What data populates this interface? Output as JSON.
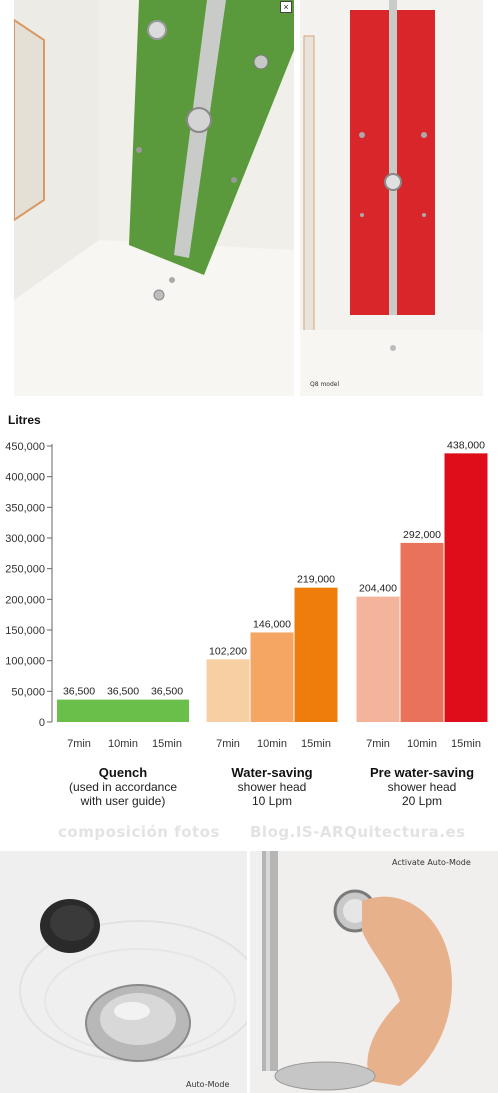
{
  "photos": {
    "top_right_caption": "Q8 model",
    "bottom_left_caption": "Auto-Mode",
    "bottom_right_caption": "Activate Auto-Mode"
  },
  "watermark": {
    "left": "composición fotos",
    "right": "Blog.IS-ARQuitectura.es"
  },
  "colors": {
    "green_tile": "#5a9a3c",
    "red_tile": "#d9262b",
    "quench": "#6abf4b",
    "water_saving": [
      "#f8cfa3",
      "#f4a662",
      "#ee7d0c"
    ],
    "pre_water_saving": [
      "#f3b49b",
      "#e8735a",
      "#dd0d1a"
    ]
  },
  "chart_data": {
    "type": "bar",
    "ylabel": "Litres",
    "ylim": [
      0,
      450000
    ],
    "yticks": [
      "0",
      "50,000",
      "100,000",
      "150,000",
      "200,000",
      "250,000",
      "300,000",
      "350,000",
      "400,000",
      "450,000"
    ],
    "categories": [
      "7min",
      "10min",
      "15min"
    ],
    "grid": false,
    "groups": [
      {
        "title": "Quench",
        "lines": [
          "(used in accordance",
          "with user guide)"
        ],
        "values": [
          36500,
          36500,
          36500
        ],
        "labels": [
          "36,500",
          "36,500",
          "36,500"
        ],
        "continuous": true
      },
      {
        "title": "Water-saving",
        "lines": [
          "shower head",
          "10 Lpm"
        ],
        "values": [
          102200,
          146000,
          219000
        ],
        "labels": [
          "102,200",
          "146,000",
          "219,000"
        ],
        "continuous": false
      },
      {
        "title": "Pre water-saving",
        "lines": [
          "shower head",
          "20 Lpm"
        ],
        "values": [
          204400,
          292000,
          438000
        ],
        "labels": [
          "204,400",
          "292,000",
          "438,000"
        ],
        "continuous": false
      }
    ]
  }
}
